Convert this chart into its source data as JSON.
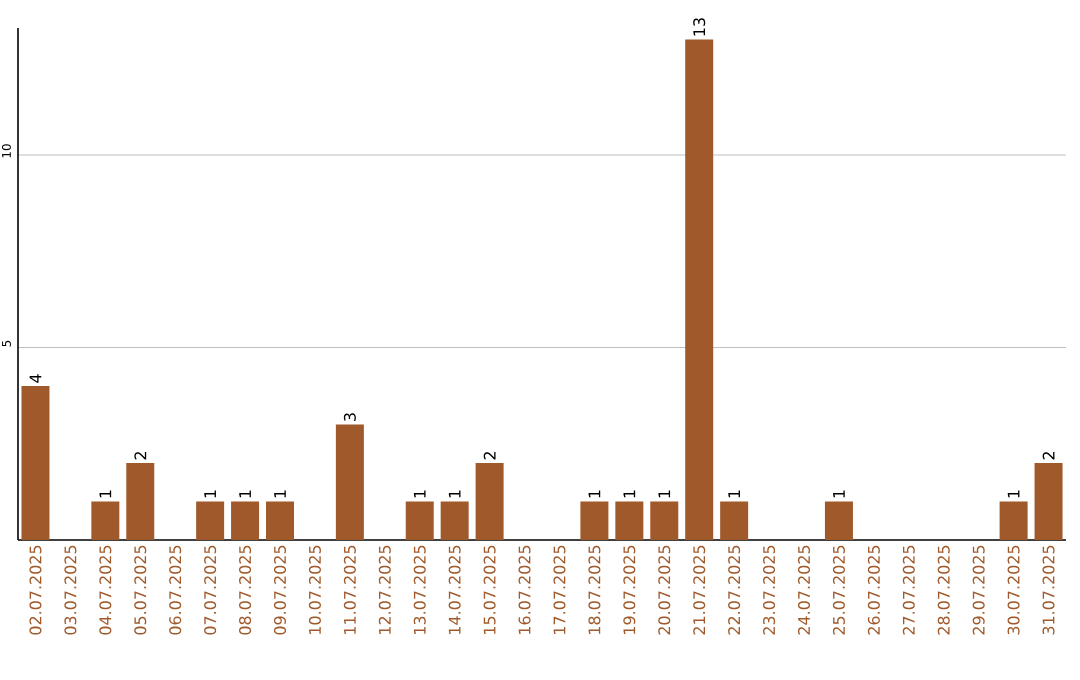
{
  "chart_data": {
    "type": "bar",
    "categories": [
      "02.07.2025",
      "03.07.2025",
      "04.07.2025",
      "05.07.2025",
      "06.07.2025",
      "07.07.2025",
      "08.07.2025",
      "09.07.2025",
      "10.07.2025",
      "11.07.2025",
      "12.07.2025",
      "13.07.2025",
      "14.07.2025",
      "15.07.2025",
      "16.07.2025",
      "17.07.2025",
      "18.07.2025",
      "19.07.2025",
      "20.07.2025",
      "21.07.2025",
      "22.07.2025",
      "23.07.2025",
      "24.07.2025",
      "25.07.2025",
      "26.07.2025",
      "27.07.2025",
      "28.07.2025",
      "29.07.2025",
      "30.07.2025",
      "31.07.2025"
    ],
    "values": [
      4,
      0,
      1,
      2,
      0,
      1,
      1,
      1,
      0,
      3,
      0,
      1,
      1,
      2,
      0,
      0,
      1,
      1,
      1,
      13,
      1,
      0,
      0,
      1,
      0,
      0,
      0,
      0,
      1,
      2
    ],
    "value_labels": [
      "4",
      null,
      "1",
      "2",
      null,
      "1",
      "1",
      "1",
      null,
      "3",
      null,
      "1",
      "1",
      "2",
      null,
      null,
      "1",
      "1",
      "1",
      "13",
      "1",
      null,
      null,
      "1",
      null,
      null,
      null,
      null,
      "1",
      "2"
    ],
    "color": "#a0592a",
    "ylim": [
      0,
      13.3
    ],
    "yticks": [
      5,
      10
    ],
    "grid": "y"
  }
}
